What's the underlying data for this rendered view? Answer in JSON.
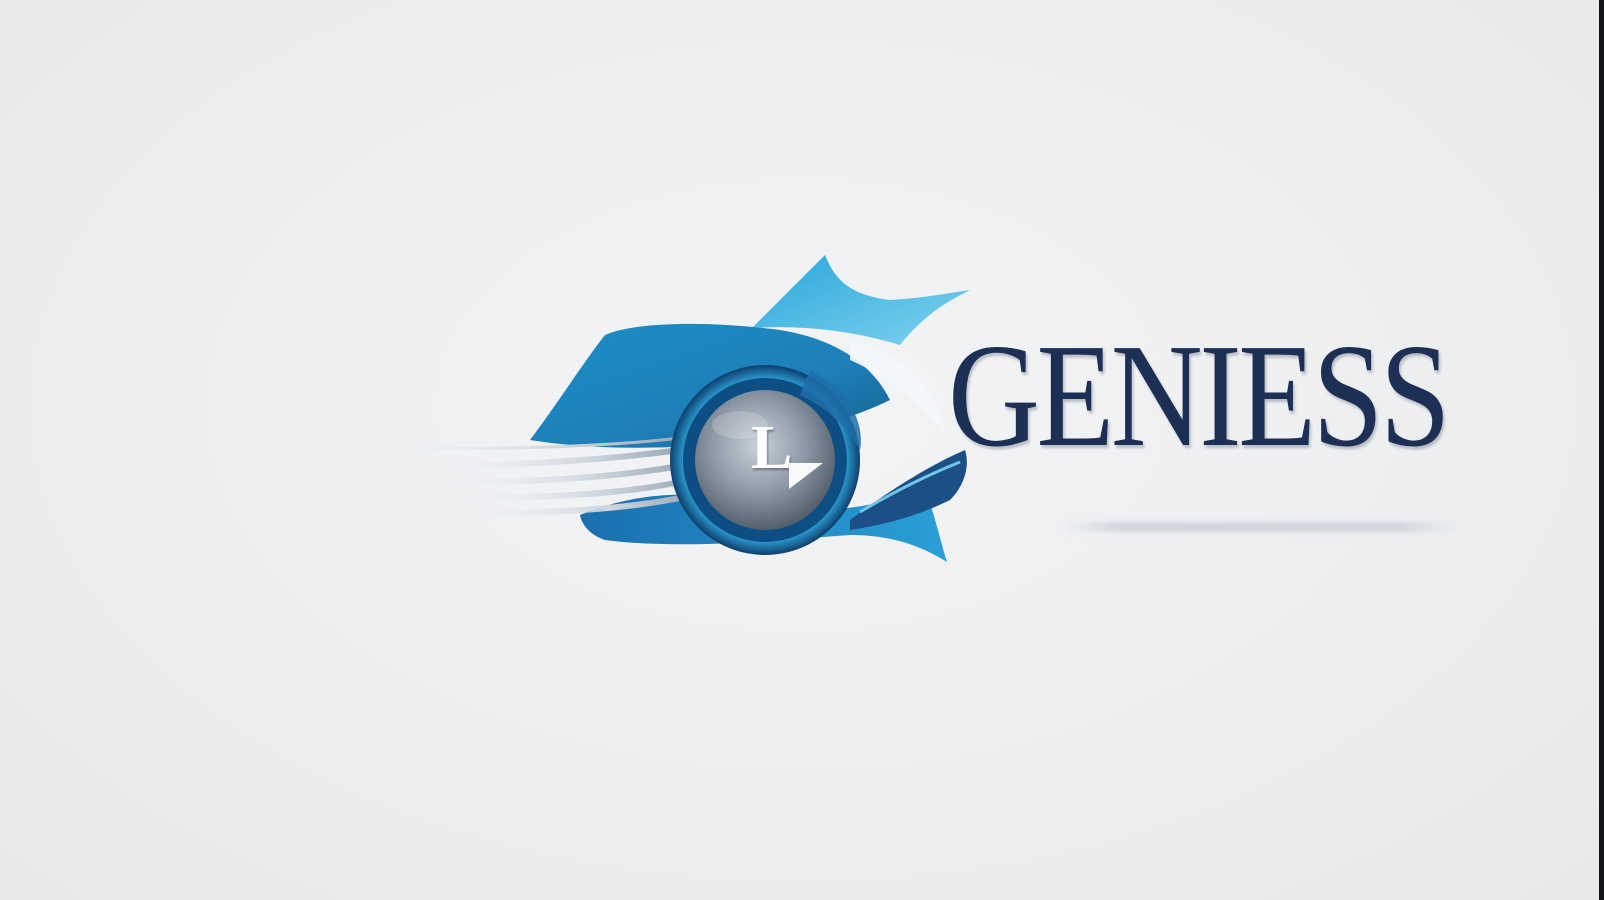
{
  "logo": {
    "wordmark": "GENIESS",
    "tagline": "",
    "emblem_letter": "L",
    "icon": "eye-swoosh-emblem-icon"
  },
  "colors": {
    "background": "#eceef0",
    "wordmark": "#1d2f55",
    "accent_blue": "#1f8fc4",
    "accent_light_blue": "#4ec0e6",
    "dark_blue": "#1a4f86"
  }
}
